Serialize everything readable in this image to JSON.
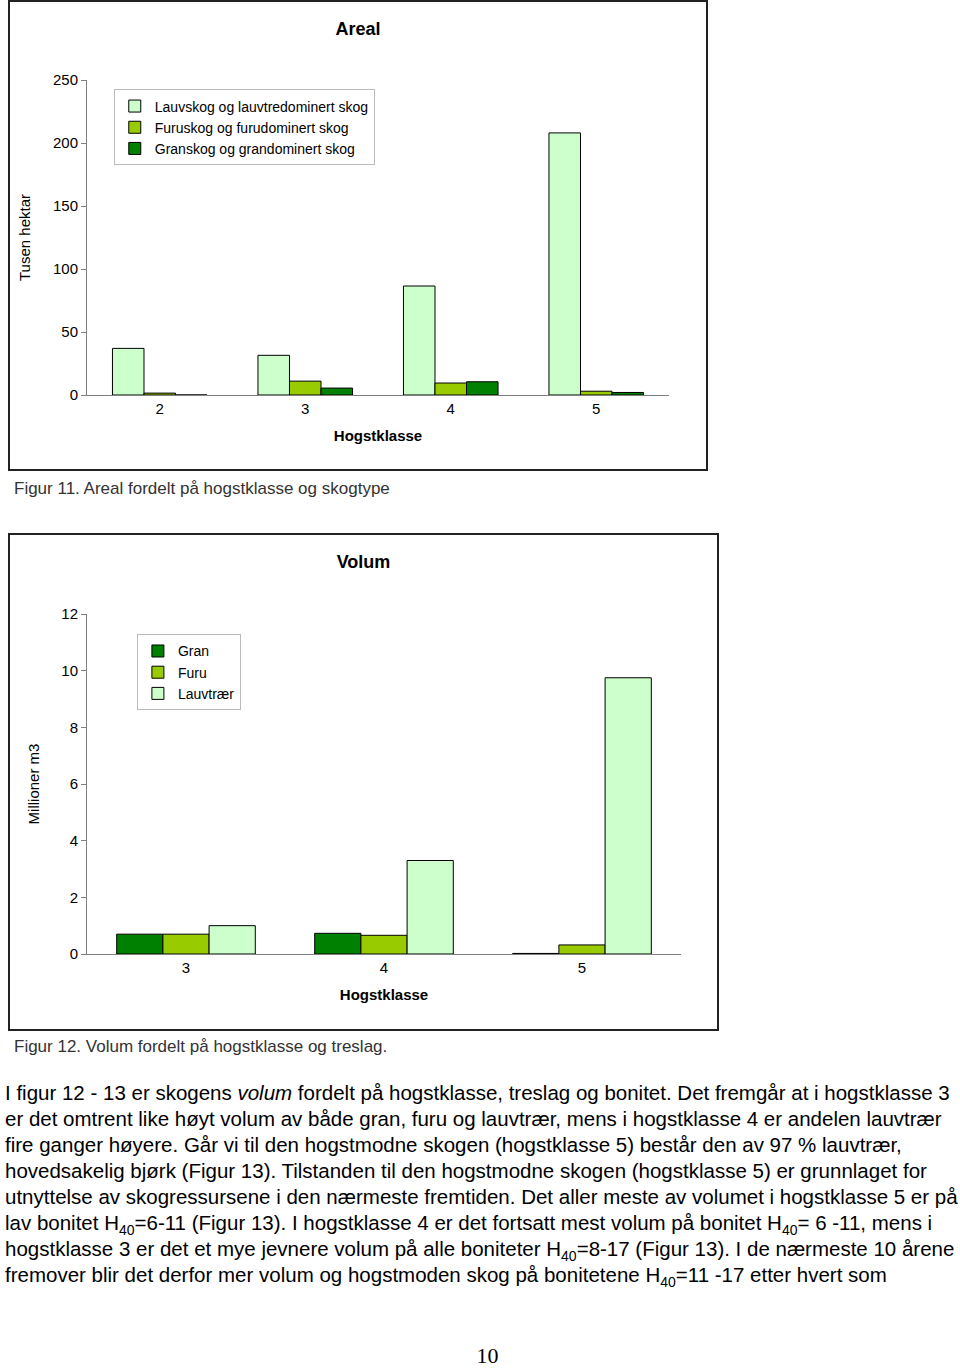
{
  "chart_data": [
    {
      "type": "bar",
      "title": "Areal",
      "caption": "Figur 11. Areal fordelt på hogstklasse og skogtype",
      "x_label": "Hogstklasse",
      "y_label": "Tusen hektar",
      "categories": [
        "2",
        "3",
        "4",
        "5"
      ],
      "series": [
        {
          "name": "Lauvskog og lauvtredominert skog",
          "color": "#ccffcc",
          "values": [
            37,
            31.5,
            86.5,
            208
          ]
        },
        {
          "name": "Furuskog og furudominert skog",
          "color": "#99cc00",
          "values": [
            1.5,
            11,
            9.5,
            3
          ]
        },
        {
          "name": "Granskog og grandominert skog",
          "color": "#008000",
          "values": [
            0,
            5.5,
            10.5,
            2
          ]
        }
      ],
      "ylim": [
        0,
        250
      ],
      "yticks": [
        0,
        50,
        100,
        150,
        200,
        250
      ],
      "grid": false,
      "legend": "upper left"
    },
    {
      "type": "bar",
      "title": "Volum",
      "caption": "Figur 12. Volum fordelt på hogstklasse og treslag.",
      "x_label": "Hogstklasse",
      "y_label": "Millioner m3",
      "categories": [
        "3",
        "4",
        "5"
      ],
      "series": [
        {
          "name": "Gran",
          "color": "#008000",
          "values": [
            0.7,
            0.73,
            0.02
          ]
        },
        {
          "name": "Furu",
          "color": "#99cc00",
          "values": [
            0.7,
            0.66,
            0.32
          ]
        },
        {
          "name": "Lauvtrær",
          "color": "#ccffcc",
          "values": [
            1.0,
            3.3,
            9.75
          ]
        }
      ],
      "ylim": [
        0,
        12
      ],
      "yticks": [
        0,
        2,
        4,
        6,
        8,
        10,
        12
      ],
      "grid": false,
      "legend": "upper left"
    }
  ],
  "document": {
    "paragraph": [
      "I figur 12 - 13 er skogens ",
      {
        "i": "volum"
      },
      " fordelt på hogstklasse, treslag og bonitet. Det fremgår at i hogstklasse 3 er det omtrent like høyt volum av både gran, furu og lauvtrær, mens i hogstklasse 4 er andelen lauvtrær fire ganger høyere. Går vi til den hogstmodne skogen (hogstklasse 5) består den av 97 % lauvtrær, hovedsakelig bjørk (Figur 13). Tilstanden til den hogstmodne skogen (hogstklasse 5) er grunnlaget for utnyttelse av skogressursene i den nærmeste fremtiden. Det aller meste av volumet i hogstklasse 5 er på lav bonitet H",
      {
        "sub": "40"
      },
      "=6-11 (Figur 13). I hogstklasse 4 er det fortsatt mest volum på bonitet H",
      {
        "sub": "40"
      },
      "= 6 -11, mens i hogstklasse 3 er det et mye jevnere volum på alle boniteter H",
      {
        "sub": "40"
      },
      "=8-17 (Figur 13). I de nærmeste 10 årene fremover blir det derfor mer volum og hogstmoden skog på bonitetene H",
      {
        "sub": "40"
      },
      "=11 -17 etter hvert som"
    ],
    "page_number": "10"
  }
}
